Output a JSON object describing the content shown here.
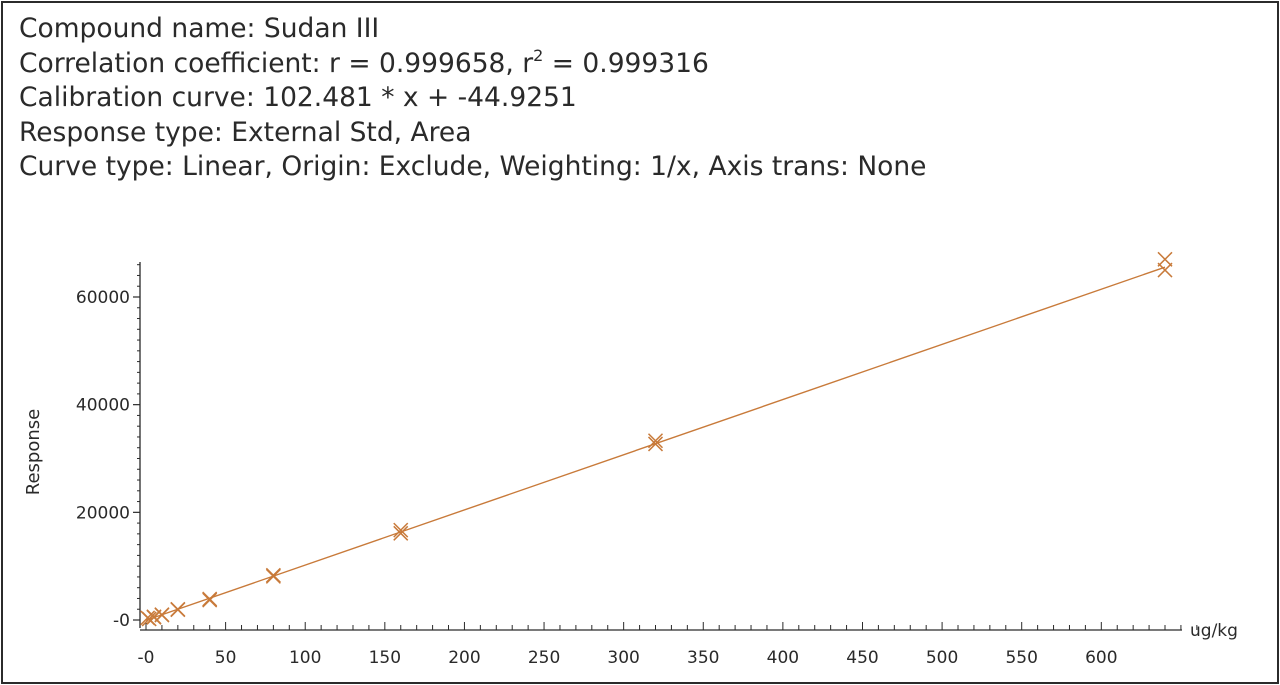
{
  "info": {
    "compound_line": "Compound name: Sudan III",
    "correlation_prefix": "Correlation coefficient: r = 0.999658, r",
    "correlation_sup": "2",
    "correlation_suffix": " = 0.999316",
    "calibration_line": "Calibration curve: 102.481 * x + -44.9251",
    "response_line": "Response type: External Std, Area",
    "curve_line": "Curve type: Linear, Origin: Exclude, Weighting: 1/x, Axis trans: None"
  },
  "colors": {
    "series": "#c87a3a",
    "axis": "#2a2a2a",
    "text": "#2a2a2a"
  },
  "chart_data": {
    "type": "scatter",
    "title": "",
    "xlabel": "ug/kg",
    "ylabel": "Response",
    "xlim": [
      -2,
      640
    ],
    "ylim": [
      -2000,
      66500
    ],
    "x_ticks": [
      0,
      50,
      100,
      150,
      200,
      250,
      300,
      350,
      400,
      450,
      500,
      550,
      600
    ],
    "x_tick_labels": [
      "-0",
      "50",
      "100",
      "150",
      "200",
      "250",
      "300",
      "350",
      "400",
      "450",
      "500",
      "550",
      "600"
    ],
    "y_ticks": [
      0,
      20000,
      40000,
      60000
    ],
    "y_tick_labels": [
      "-0",
      "20000",
      "40000",
      "60000"
    ],
    "grid": false,
    "fit": {
      "slope": 102.481,
      "intercept": -44.9251,
      "x_range": [
        0,
        640
      ]
    },
    "points": [
      {
        "x": 1,
        "y": 400
      },
      {
        "x": 2,
        "y": 200
      },
      {
        "x": 5,
        "y": 600
      },
      {
        "x": 5,
        "y": 500
      },
      {
        "x": 10,
        "y": 1000
      },
      {
        "x": 10,
        "y": 900
      },
      {
        "x": 20,
        "y": 2000
      },
      {
        "x": 20,
        "y": 1900
      },
      {
        "x": 40,
        "y": 3900
      },
      {
        "x": 40,
        "y": 3700
      },
      {
        "x": 80,
        "y": 8300
      },
      {
        "x": 80,
        "y": 8100
      },
      {
        "x": 160,
        "y": 16700
      },
      {
        "x": 160,
        "y": 16100
      },
      {
        "x": 320,
        "y": 33300
      },
      {
        "x": 320,
        "y": 32700
      },
      {
        "x": 640,
        "y": 67000
      },
      {
        "x": 640,
        "y": 65000
      }
    ]
  }
}
